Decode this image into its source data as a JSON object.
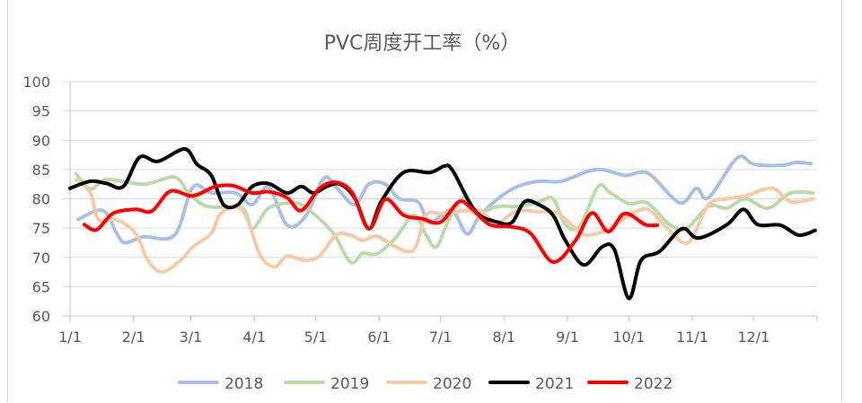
{
  "chart_data": {
    "type": "line",
    "title": "PVC周度开工率（%）",
    "xlabel": "",
    "ylabel": "",
    "ylim": [
      60,
      100
    ],
    "yticks": [
      "60",
      "65",
      "70",
      "75",
      "80",
      "85",
      "90",
      "95",
      "100"
    ],
    "xticks": [
      "1/1",
      "2/1",
      "3/1",
      "4/1",
      "5/1",
      "6/1",
      "7/1",
      "8/1",
      "9/1",
      "10/1",
      "11/1",
      "12/1"
    ],
    "grid": true,
    "legend": "bottom",
    "series": [
      {
        "name": "2018",
        "color": "#a9bfe5",
        "points": [
          [
            "1/5",
            76.5
          ],
          [
            "1/17",
            78
          ],
          [
            "1/24",
            74
          ],
          [
            "1/28",
            72.5
          ],
          [
            "2/6",
            73.5
          ],
          [
            "2/21",
            73.8
          ],
          [
            "3/2",
            82
          ],
          [
            "3/11",
            81
          ],
          [
            "3/23",
            81
          ],
          [
            "3/31",
            79
          ],
          [
            "4/8",
            82
          ],
          [
            "4/17",
            75.5
          ],
          [
            "4/26",
            77
          ],
          [
            "5/5",
            83.5
          ],
          [
            "5/11",
            82
          ],
          [
            "5/20",
            79
          ],
          [
            "5/27",
            82.5
          ],
          [
            "6/4",
            82.5
          ],
          [
            "6/11",
            80
          ],
          [
            "6/20",
            79.5
          ],
          [
            "6/25",
            76
          ],
          [
            "7/1",
            77
          ],
          [
            "7/7",
            78
          ],
          [
            "7/14",
            74
          ],
          [
            "7/20",
            77
          ],
          [
            "7/29",
            80
          ],
          [
            "8/7",
            82
          ],
          [
            "8/18",
            83
          ],
          [
            "8/29",
            83
          ],
          [
            "9/15",
            85
          ],
          [
            "9/29",
            84
          ],
          [
            "10/6",
            84.5
          ],
          [
            "10/12",
            84
          ],
          [
            "10/26",
            79.3
          ],
          [
            "11/3",
            81.8
          ],
          [
            "11/9",
            80.2
          ],
          [
            "11/23",
            87
          ],
          [
            "12/1",
            85.9
          ],
          [
            "12/14",
            85.7
          ],
          [
            "12/22",
            86.2
          ],
          [
            "12/29",
            86
          ]
        ]
      },
      {
        "name": "2019",
        "color": "#b8dba8",
        "points": [
          [
            "1/4",
            84.3
          ],
          [
            "1/11",
            81.7
          ],
          [
            "1/19",
            83.3
          ],
          [
            "2/6",
            82.5
          ],
          [
            "2/21",
            83.7
          ],
          [
            "2/28",
            81
          ],
          [
            "3/9",
            78.7
          ],
          [
            "3/26",
            78.4
          ],
          [
            "3/31",
            74.9
          ],
          [
            "4/8",
            78.4
          ],
          [
            "4/19",
            79.3
          ],
          [
            "4/26",
            78.5
          ],
          [
            "5/9",
            74.4
          ],
          [
            "5/18",
            69.2
          ],
          [
            "5/24",
            70.7
          ],
          [
            "5/31",
            70.6
          ],
          [
            "6/9",
            73.3
          ],
          [
            "6/18",
            77.2
          ],
          [
            "6/24",
            73.8
          ],
          [
            "6/29",
            71.8
          ],
          [
            "7/5",
            76.4
          ],
          [
            "7/12",
            80.2
          ],
          [
            "7/18",
            77.5
          ],
          [
            "7/29",
            78.7
          ],
          [
            "8/9",
            78.7
          ],
          [
            "8/18",
            79.5
          ],
          [
            "8/25",
            80
          ],
          [
            "8/31",
            75.6
          ],
          [
            "9/7",
            75.3
          ],
          [
            "9/16",
            82.1
          ],
          [
            "9/22",
            81
          ],
          [
            "10/1",
            79.2
          ],
          [
            "10/10",
            79.3
          ],
          [
            "10/21",
            75.6
          ],
          [
            "10/29",
            74.9
          ],
          [
            "11/9",
            78.7
          ],
          [
            "11/18",
            78.4
          ],
          [
            "11/27",
            80
          ],
          [
            "12/8",
            78.4
          ],
          [
            "12/19",
            81
          ],
          [
            "12/30",
            81
          ]
        ]
      },
      {
        "name": "2020",
        "color": "#f6c9a7",
        "points": [
          [
            "1/4",
            83.3
          ],
          [
            "1/11",
            81
          ],
          [
            "1/15",
            76.4
          ],
          [
            "1/24",
            76.4
          ],
          [
            "2/2",
            74.1
          ],
          [
            "2/8",
            69.5
          ],
          [
            "2/15",
            67.5
          ],
          [
            "2/24",
            69.5
          ],
          [
            "3/2",
            71.8
          ],
          [
            "3/11",
            74.1
          ],
          [
            "3/15",
            77.2
          ],
          [
            "3/22",
            78.7
          ],
          [
            "3/28",
            77
          ],
          [
            "4/4",
            70.3
          ],
          [
            "4/11",
            68.4
          ],
          [
            "4/17",
            70.2
          ],
          [
            "4/26",
            69.5
          ],
          [
            "5/3",
            70.3
          ],
          [
            "5/11",
            73.8
          ],
          [
            "5/18",
            73.8
          ],
          [
            "5/24",
            72.9
          ],
          [
            "5/31",
            73.6
          ],
          [
            "6/9",
            71.8
          ],
          [
            "6/18",
            71.3
          ],
          [
            "6/24",
            77.2
          ],
          [
            "7/1",
            77.5
          ],
          [
            "7/10",
            77.9
          ],
          [
            "7/20",
            77.9
          ],
          [
            "7/29",
            76
          ],
          [
            "8/7",
            77.9
          ],
          [
            "8/18",
            77.8
          ],
          [
            "8/27",
            77.6
          ],
          [
            "9/5",
            74.9
          ],
          [
            "9/11",
            73.8
          ],
          [
            "9/22",
            74.9
          ],
          [
            "10/1",
            77.2
          ],
          [
            "10/10",
            78.2
          ],
          [
            "10/18",
            75.6
          ],
          [
            "10/27",
            72.6
          ],
          [
            "11/1",
            73.3
          ],
          [
            "11/9",
            79
          ],
          [
            "11/18",
            80
          ],
          [
            "11/27",
            80.5
          ],
          [
            "12/10",
            81.8
          ],
          [
            "12/19",
            79.5
          ],
          [
            "12/30",
            80
          ]
        ]
      },
      {
        "name": "2021",
        "color": "#000000",
        "points": [
          [
            "1/1",
            81.8
          ],
          [
            "1/11",
            83
          ],
          [
            "1/19",
            82.6
          ],
          [
            "1/27",
            82.1
          ],
          [
            "2/4",
            87.1
          ],
          [
            "2/13",
            86.4
          ],
          [
            "2/26",
            88.5
          ],
          [
            "3/4",
            85.9
          ],
          [
            "3/11",
            84
          ],
          [
            "3/17",
            79
          ],
          [
            "3/24",
            79
          ],
          [
            "3/31",
            82.1
          ],
          [
            "4/8",
            82.6
          ],
          [
            "4/17",
            81
          ],
          [
            "4/24",
            82.1
          ],
          [
            "4/30",
            81
          ],
          [
            "5/7",
            82.2
          ],
          [
            "5/13",
            82.5
          ],
          [
            "5/20",
            80.2
          ],
          [
            "5/27",
            74.9
          ],
          [
            "6/2",
            79.5
          ],
          [
            "6/13",
            84.5
          ],
          [
            "6/26",
            84.5
          ],
          [
            "7/3",
            85.6
          ],
          [
            "7/7",
            84.8
          ],
          [
            "7/18",
            77.9
          ],
          [
            "7/29",
            76
          ],
          [
            "8/5",
            76
          ],
          [
            "8/11",
            79.5
          ],
          [
            "8/18",
            79
          ],
          [
            "8/25",
            77.2
          ],
          [
            "8/31",
            72.9
          ],
          [
            "9/9",
            68.7
          ],
          [
            "9/18",
            71.8
          ],
          [
            "9/24",
            71.3
          ],
          [
            "10/1",
            63
          ],
          [
            "10/7",
            69.5
          ],
          [
            "10/16",
            71
          ],
          [
            "10/27",
            74.9
          ],
          [
            "11/4",
            73.3
          ],
          [
            "11/18",
            75.6
          ],
          [
            "11/26",
            78.2
          ],
          [
            "12/3",
            75.6
          ],
          [
            "12/14",
            75.5
          ],
          [
            "12/23",
            73.8
          ],
          [
            "12/31",
            74.6
          ]
        ]
      },
      {
        "name": "2022",
        "color": "#ff0000",
        "points": [
          [
            "1/8",
            75.6
          ],
          [
            "1/14",
            74.7
          ],
          [
            "1/22",
            77.5
          ],
          [
            "2/2",
            78.2
          ],
          [
            "2/10",
            77.9
          ],
          [
            "2/19",
            81.3
          ],
          [
            "3/2",
            80.5
          ],
          [
            "3/13",
            82.1
          ],
          [
            "3/22",
            82.2
          ],
          [
            "3/31",
            81
          ],
          [
            "4/8",
            81.2
          ],
          [
            "4/17",
            80.2
          ],
          [
            "4/24",
            78
          ],
          [
            "5/3",
            81.8
          ],
          [
            "5/11",
            82.8
          ],
          [
            "5/19",
            81
          ],
          [
            "5/27",
            74.9
          ],
          [
            "6/4",
            79.9
          ],
          [
            "6/13",
            77.2
          ],
          [
            "6/22",
            76.6
          ],
          [
            "7/1",
            76
          ],
          [
            "7/10",
            79.5
          ],
          [
            "7/16",
            78.4
          ],
          [
            "7/25",
            75.6
          ],
          [
            "8/5",
            75.2
          ],
          [
            "8/14",
            74.1
          ],
          [
            "8/25",
            69.2
          ],
          [
            "9/5",
            72.9
          ],
          [
            "9/13",
            77.6
          ],
          [
            "9/21",
            74.4
          ],
          [
            "9/29",
            77.5
          ],
          [
            "10/9",
            75.6
          ],
          [
            "10/15",
            75.5
          ]
        ]
      }
    ]
  }
}
